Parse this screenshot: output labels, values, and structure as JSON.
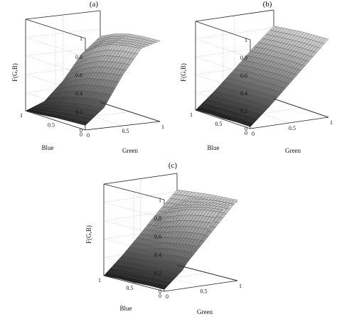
{
  "chart_data": [
    {
      "type": "surface",
      "title": "(a)",
      "xlabel": "Green",
      "ylabel": "Blue",
      "zlabel": "F(G,B)",
      "x_ticks": [
        "0",
        "0.5",
        "1"
      ],
      "y_ticks": [
        "1",
        "0.5",
        "0"
      ],
      "z_ticks": [
        "0",
        "0.2",
        "0.4",
        "0.6",
        "0.8",
        "1"
      ],
      "xlim": [
        0,
        1
      ],
      "ylim": [
        0,
        1
      ],
      "zlim": [
        0,
        1
      ],
      "grid": true,
      "colormap": "gray",
      "surfaces": [
        {
          "x": [
            0,
            0.25,
            0.5,
            0.75,
            1
          ],
          "y": [
            0,
            0.25,
            0.5,
            0.75,
            1
          ],
          "z": [
            [
              0.05,
              0.22,
              0.55,
              0.82,
              0.88
            ],
            [
              0.04,
              0.2,
              0.52,
              0.8,
              0.87
            ],
            [
              0.03,
              0.17,
              0.48,
              0.76,
              0.85
            ],
            [
              0.01,
              0.13,
              0.4,
              0.68,
              0.8
            ],
            [
              0.0,
              0.08,
              0.28,
              0.55,
              0.72
            ]
          ]
        }
      ]
    },
    {
      "type": "surface",
      "title": "(b)",
      "xlabel": "Green",
      "ylabel": "Blue",
      "zlabel": "F(G,B)",
      "x_ticks": [
        "0",
        "0.5",
        "1"
      ],
      "y_ticks": [
        "1",
        "0.5",
        "0"
      ],
      "z_ticks": [
        "0",
        "0.2",
        "0.4",
        "0.6",
        "0.8",
        "1"
      ],
      "xlim": [
        0,
        1
      ],
      "ylim": [
        0,
        1
      ],
      "zlim": [
        0,
        1
      ],
      "grid": true,
      "colormap": "gray",
      "surfaces": [
        {
          "x": [
            0,
            0.25,
            0.5,
            0.75,
            1
          ],
          "y": [
            0,
            0.25,
            0.5,
            0.75,
            1
          ],
          "z": [
            [
              0.02,
              0.22,
              0.44,
              0.66,
              0.88
            ],
            [
              0.02,
              0.22,
              0.44,
              0.66,
              0.87
            ],
            [
              0.01,
              0.21,
              0.43,
              0.65,
              0.86
            ],
            [
              0.01,
              0.2,
              0.42,
              0.64,
              0.84
            ],
            [
              0.0,
              0.19,
              0.4,
              0.62,
              0.82
            ]
          ]
        }
      ]
    },
    {
      "type": "surface",
      "title": "(c)",
      "xlabel": "Green",
      "ylabel": "Blue",
      "zlabel": "F(G,B)",
      "x_ticks": [
        "0",
        "0.5",
        "1"
      ],
      "y_ticks": [
        "1",
        "0.5",
        "0"
      ],
      "z_ticks": [
        "0",
        "0.2",
        "0.4",
        "0.6",
        "0.8",
        "1"
      ],
      "xlim": [
        0,
        1
      ],
      "ylim": [
        0,
        1
      ],
      "zlim": [
        0,
        1
      ],
      "grid": true,
      "colormap": "gray",
      "surfaces": [
        {
          "x": [
            0,
            0.25,
            0.5,
            0.75,
            1
          ],
          "y": [
            0,
            0.25,
            0.5,
            0.75,
            1
          ],
          "z": [
            [
              0.02,
              0.2,
              0.5,
              0.78,
              0.86
            ],
            [
              0.02,
              0.19,
              0.48,
              0.76,
              0.85
            ],
            [
              0.01,
              0.17,
              0.45,
              0.72,
              0.83
            ],
            [
              0.01,
              0.14,
              0.4,
              0.66,
              0.8
            ],
            [
              0.0,
              0.1,
              0.32,
              0.58,
              0.74
            ]
          ]
        },
        {
          "x": [
            0,
            0.25,
            0.5,
            0.75,
            1
          ],
          "y": [
            0,
            0.25,
            0.5,
            0.75,
            1
          ],
          "z": [
            [
              0.02,
              0.22,
              0.44,
              0.66,
              0.88
            ],
            [
              0.02,
              0.22,
              0.44,
              0.66,
              0.87
            ],
            [
              0.01,
              0.21,
              0.43,
              0.65,
              0.86
            ],
            [
              0.01,
              0.2,
              0.42,
              0.64,
              0.84
            ],
            [
              0.0,
              0.19,
              0.4,
              0.62,
              0.82
            ]
          ]
        }
      ]
    }
  ]
}
